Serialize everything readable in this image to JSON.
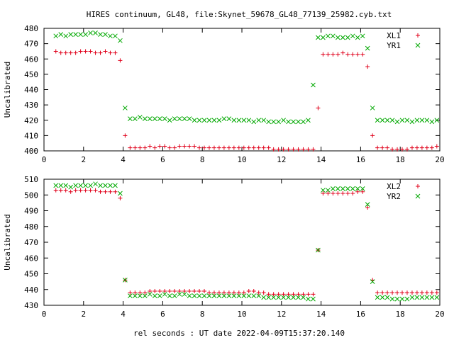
{
  "title": "HIRES continuum, GL48, file:Skynet_59678_GL48_77139_25982.cyb.txt",
  "xlabel": "rel seconds : UT date 2022-04-09T15:37:20.140",
  "colors": {
    "red": "#e0001a",
    "green": "#00a800"
  },
  "chart_data": [
    {
      "type": "scatter",
      "ylabel": "Uncalibrated",
      "xlim": [
        0,
        20
      ],
      "ylim": [
        400,
        480
      ],
      "xticks": [
        0,
        2,
        4,
        6,
        8,
        10,
        12,
        14,
        16,
        18,
        20
      ],
      "yticks": [
        400,
        410,
        420,
        430,
        440,
        450,
        460,
        470,
        480
      ],
      "legend_position": "top-right",
      "series": [
        {
          "name": "XL1",
          "marker": "plus",
          "color": "#e0001a",
          "x": [
            0.6,
            0.85,
            1.1,
            1.35,
            1.6,
            1.85,
            2.1,
            2.35,
            2.6,
            2.85,
            3.1,
            3.35,
            3.6,
            3.85,
            4.1,
            4.35,
            4.6,
            4.85,
            5.1,
            5.35,
            5.6,
            5.85,
            6.1,
            6.35,
            6.6,
            6.85,
            7.1,
            7.35,
            7.6,
            7.85,
            8.1,
            8.35,
            8.6,
            8.85,
            9.1,
            9.35,
            9.6,
            9.85,
            10.1,
            10.35,
            10.6,
            10.85,
            11.1,
            11.35,
            11.6,
            11.85,
            12.1,
            12.35,
            12.6,
            12.85,
            13.1,
            13.35,
            13.6,
            13.85,
            14.1,
            14.35,
            14.6,
            14.85,
            15.1,
            15.35,
            15.6,
            15.85,
            16.1,
            16.35,
            16.6,
            16.85,
            17.1,
            17.35,
            17.6,
            17.85,
            18.1,
            18.35,
            18.6,
            18.85,
            19.1,
            19.35,
            19.6,
            19.85
          ],
          "y": [
            465,
            464,
            464,
            464,
            464,
            465,
            465,
            465,
            464,
            464,
            465,
            464,
            464,
            459,
            410,
            402,
            402,
            402,
            402,
            403,
            402,
            403,
            403,
            402,
            402,
            403,
            403,
            403,
            403,
            402,
            402,
            402,
            402,
            402,
            402,
            402,
            402,
            402,
            402,
            402,
            402,
            402,
            402,
            402,
            401,
            401,
            401,
            401,
            401,
            401,
            401,
            401,
            401,
            428,
            463,
            463,
            463,
            463,
            464,
            463,
            463,
            463,
            463,
            455,
            410,
            402,
            402,
            402,
            401,
            401,
            401,
            401,
            402,
            402,
            402,
            402,
            402,
            403
          ]
        },
        {
          "name": "YR1",
          "marker": "cross",
          "color": "#00a800",
          "x": [
            0.6,
            0.85,
            1.1,
            1.35,
            1.6,
            1.85,
            2.1,
            2.35,
            2.6,
            2.85,
            3.1,
            3.35,
            3.6,
            3.85,
            4.1,
            4.35,
            4.6,
            4.85,
            5.1,
            5.35,
            5.6,
            5.85,
            6.1,
            6.35,
            6.6,
            6.85,
            7.1,
            7.35,
            7.6,
            7.85,
            8.1,
            8.35,
            8.6,
            8.85,
            9.1,
            9.35,
            9.6,
            9.85,
            10.1,
            10.35,
            10.6,
            10.85,
            11.1,
            11.35,
            11.6,
            11.85,
            12.1,
            12.35,
            12.6,
            12.85,
            13.1,
            13.35,
            13.6,
            13.85,
            14.1,
            14.35,
            14.6,
            14.85,
            15.1,
            15.35,
            15.6,
            15.85,
            16.1,
            16.35,
            16.6,
            16.85,
            17.1,
            17.35,
            17.6,
            17.85,
            18.1,
            18.35,
            18.6,
            18.85,
            19.1,
            19.35,
            19.6,
            19.85
          ],
          "y": [
            475,
            476,
            475,
            476,
            476,
            476,
            476,
            477,
            477,
            476,
            476,
            475,
            475,
            472,
            428,
            421,
            421,
            422,
            421,
            421,
            421,
            421,
            421,
            420,
            421,
            421,
            421,
            421,
            420,
            420,
            420,
            420,
            420,
            420,
            421,
            421,
            420,
            420,
            420,
            420,
            419,
            420,
            420,
            419,
            419,
            419,
            420,
            419,
            419,
            419,
            419,
            420,
            443,
            474,
            474,
            475,
            475,
            474,
            474,
            474,
            475,
            474,
            475,
            467,
            428,
            420,
            420,
            420,
            420,
            419,
            420,
            420,
            419,
            420,
            420,
            420,
            419,
            420
          ]
        }
      ]
    },
    {
      "type": "scatter",
      "ylabel": "Uncalibrated",
      "xlim": [
        0,
        20
      ],
      "ylim": [
        430,
        510
      ],
      "xticks": [
        0,
        2,
        4,
        6,
        8,
        10,
        12,
        14,
        16,
        18,
        20
      ],
      "yticks": [
        430,
        440,
        450,
        460,
        470,
        480,
        490,
        500,
        510
      ],
      "legend_position": "top-right",
      "series": [
        {
          "name": "XL2",
          "marker": "plus",
          "color": "#e0001a",
          "x": [
            0.6,
            0.85,
            1.1,
            1.35,
            1.6,
            1.85,
            2.1,
            2.35,
            2.6,
            2.85,
            3.1,
            3.35,
            3.6,
            3.85,
            4.1,
            4.35,
            4.6,
            4.85,
            5.1,
            5.35,
            5.6,
            5.85,
            6.1,
            6.35,
            6.6,
            6.85,
            7.1,
            7.35,
            7.6,
            7.85,
            8.1,
            8.35,
            8.6,
            8.85,
            9.1,
            9.35,
            9.6,
            9.85,
            10.1,
            10.35,
            10.6,
            10.85,
            11.1,
            11.35,
            11.6,
            11.85,
            12.1,
            12.35,
            12.6,
            12.85,
            13.1,
            13.35,
            13.6,
            13.85,
            14.1,
            14.35,
            14.6,
            14.85,
            15.1,
            15.35,
            15.6,
            15.85,
            16.1,
            16.35,
            16.6,
            16.85,
            17.1,
            17.35,
            17.6,
            17.85,
            18.1,
            18.35,
            18.6,
            18.85,
            19.1,
            19.35,
            19.6,
            19.85
          ],
          "y": [
            503,
            503,
            503,
            502,
            503,
            503,
            503,
            503,
            503,
            502,
            502,
            502,
            502,
            498,
            446,
            438,
            438,
            438,
            438,
            439,
            439,
            439,
            439,
            439,
            439,
            439,
            439,
            439,
            439,
            439,
            439,
            438,
            438,
            438,
            438,
            438,
            438,
            438,
            438,
            439,
            439,
            438,
            438,
            437,
            437,
            437,
            437,
            437,
            437,
            437,
            437,
            437,
            437,
            465,
            501,
            501,
            501,
            501,
            501,
            501,
            501,
            502,
            502,
            492,
            446,
            438,
            438,
            438,
            438,
            438,
            438,
            438,
            438,
            438,
            438,
            438,
            438,
            438
          ]
        },
        {
          "name": "YR2",
          "marker": "cross",
          "color": "#00a800",
          "x": [
            0.6,
            0.85,
            1.1,
            1.35,
            1.6,
            1.85,
            2.1,
            2.35,
            2.6,
            2.85,
            3.1,
            3.35,
            3.6,
            3.85,
            4.1,
            4.35,
            4.6,
            4.85,
            5.1,
            5.35,
            5.6,
            5.85,
            6.1,
            6.35,
            6.6,
            6.85,
            7.1,
            7.35,
            7.6,
            7.85,
            8.1,
            8.35,
            8.6,
            8.85,
            9.1,
            9.35,
            9.6,
            9.85,
            10.1,
            10.35,
            10.6,
            10.85,
            11.1,
            11.35,
            11.6,
            11.85,
            12.1,
            12.35,
            12.6,
            12.85,
            13.1,
            13.35,
            13.6,
            13.85,
            14.1,
            14.35,
            14.6,
            14.85,
            15.1,
            15.35,
            15.6,
            15.85,
            16.1,
            16.35,
            16.6,
            16.85,
            17.1,
            17.35,
            17.6,
            17.85,
            18.1,
            18.35,
            18.6,
            18.85,
            19.1,
            19.35,
            19.6,
            19.85
          ],
          "y": [
            506,
            506,
            506,
            505,
            506,
            506,
            506,
            506,
            507,
            506,
            506,
            506,
            506,
            501,
            446,
            436,
            436,
            436,
            436,
            437,
            436,
            436,
            437,
            436,
            436,
            437,
            437,
            436,
            436,
            436,
            436,
            436,
            436,
            436,
            436,
            436,
            436,
            436,
            436,
            436,
            436,
            436,
            435,
            435,
            435,
            435,
            435,
            435,
            435,
            435,
            435,
            434,
            434,
            465,
            503,
            503,
            504,
            504,
            504,
            504,
            504,
            504,
            504,
            494,
            445,
            435,
            435,
            435,
            434,
            434,
            434,
            434,
            435,
            435,
            435,
            435,
            435,
            435
          ]
        }
      ]
    }
  ]
}
